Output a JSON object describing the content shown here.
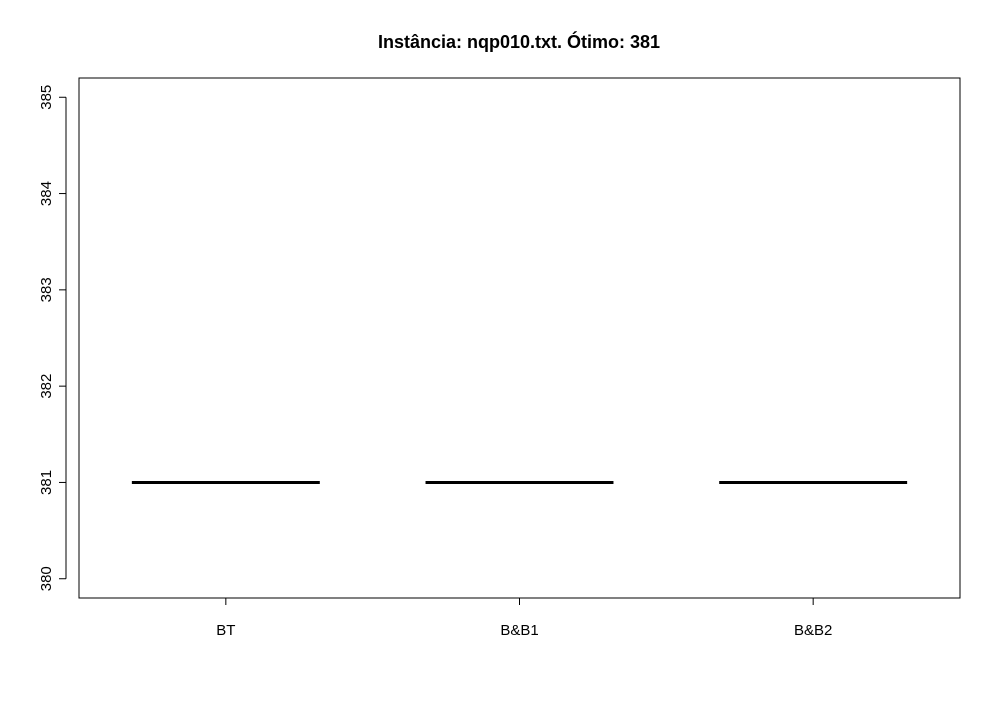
{
  "chart_data": {
    "type": "boxplot",
    "title": "Instância: nqp010.txt. Ótimo: 381",
    "xlabel": "",
    "ylabel": "",
    "categories": [
      "BT",
      "B&B1",
      "B&B2"
    ],
    "values": [
      381,
      381,
      381
    ],
    "ylim": [
      379.8,
      385.2
    ],
    "yticks": [
      380,
      381,
      382,
      383,
      384,
      385
    ],
    "ytick_labels": [
      "380",
      "381",
      "382",
      "383",
      "384",
      "385"
    ],
    "grid": false,
    "legend": "none",
    "colors": {
      "line": "#000000",
      "background": "#ffffff"
    }
  }
}
